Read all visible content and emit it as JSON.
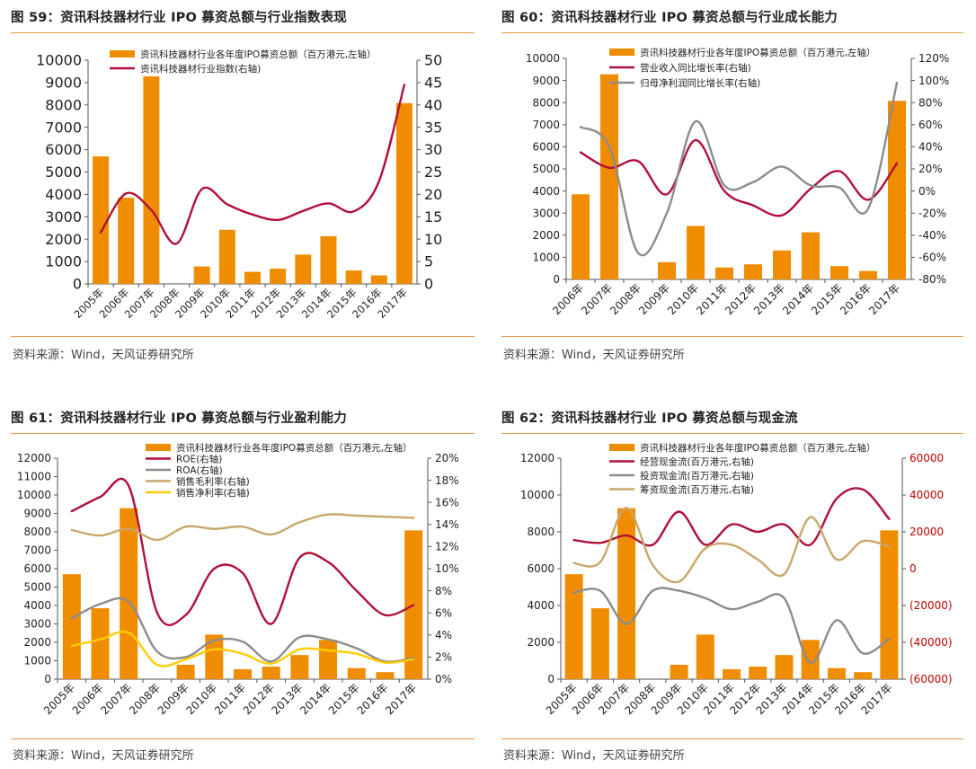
{
  "categories": [
    "2005年",
    "2006年",
    "2007年",
    "2008年",
    "2009年",
    "2010年",
    "2011年",
    "2012年",
    "2013年",
    "2014年",
    "2015年",
    "2016年",
    "2017年"
  ],
  "panels": [
    {
      "title": "图 59：资讯科技器材行业 IPO 募资总额与行业指数表现",
      "source": "资料来源：Wind，天风证券研究所",
      "chart_data": {
        "type": "bar",
        "categories": [
          "2005年",
          "2006年",
          "2007年",
          "2008年",
          "2009年",
          "2010年",
          "2011年",
          "2012年",
          "2013年",
          "2014年",
          "2015年",
          "2016年",
          "2017年"
        ],
        "ylim": [
          0,
          10000
        ],
        "yticks": [
          "0",
          "1000",
          "2000",
          "3000",
          "4000",
          "5000",
          "6000",
          "7000",
          "8000",
          "9000",
          "10000"
        ],
        "ylim_right": [
          0,
          50
        ],
        "yticks_right": [
          "0",
          "5",
          "10",
          "15",
          "20",
          "25",
          "30",
          "35",
          "40",
          "45",
          "50"
        ],
        "series": [
          {
            "name": "资讯科技器材行业各年度IPO募资总额（百万港元,左轴）",
            "type": "bar",
            "axis": "left",
            "values": [
              5700,
              3850,
              9280,
              0,
              780,
              2420,
              540,
              680,
              1310,
              2130,
              600,
              380,
              8080
            ]
          },
          {
            "name": "资讯科技器材行业指数(右轴)",
            "type": "line",
            "axis": "right",
            "values": [
              11.5,
              20.2,
              16.5,
              9,
              21.2,
              17.8,
              15.5,
              14.3,
              16.3,
              18,
              16.2,
              23,
              44.5
            ]
          }
        ]
      }
    },
    {
      "title": "图 60：资讯科技器材行业 IPO 募资总额与行业成长能力",
      "source": "资料来源：Wind，天风证券研究所",
      "chart_data": {
        "type": "bar",
        "categories": [
          "2006年",
          "2007年",
          "2008年",
          "2009年",
          "2010年",
          "2011年",
          "2012年",
          "2013年",
          "2014年",
          "2015年",
          "2016年",
          "2017年"
        ],
        "ylim": [
          0,
          10000
        ],
        "yticks": [
          "0",
          "1000",
          "2000",
          "3000",
          "4000",
          "5000",
          "6000",
          "7000",
          "8000",
          "9000",
          "10000"
        ],
        "ylim_right": [
          -80,
          120
        ],
        "yticks_right": [
          "-80%",
          "-60%",
          "-40%",
          "-20%",
          "0%",
          "20%",
          "40%",
          "60%",
          "80%",
          "100%",
          "120%"
        ],
        "series": [
          {
            "name": "资讯科技器材行业各年度IPO募资总额（百万港元,左轴）",
            "type": "bar",
            "axis": "left",
            "values": [
              3850,
              9280,
              0,
              780,
              2420,
              540,
              680,
              1310,
              2130,
              600,
              380,
              8080
            ]
          },
          {
            "name": "营业收入同比增长率(右轴)",
            "type": "line",
            "axis": "right",
            "values": [
              35,
              21,
              27,
              -3,
              46,
              0,
              -13,
              -22,
              2,
              18,
              -8,
              25
            ]
          },
          {
            "name": "归母净利润同比增长率(右轴)",
            "type": "line",
            "axis": "right",
            "values": [
              58,
              40,
              -56,
              -20,
              63,
              5,
              8,
              22,
              5,
              3,
              -16,
              98
            ]
          }
        ]
      }
    },
    {
      "title": "图 61：资讯科技器材行业 IPO 募资总额与行业盈利能力",
      "source": "资料来源：Wind，天风证券研究所",
      "chart_data": {
        "type": "bar",
        "categories": [
          "2005年",
          "2006年",
          "2007年",
          "2008年",
          "2009年",
          "2010年",
          "2011年",
          "2012年",
          "2013年",
          "2014年",
          "2015年",
          "2016年",
          "2017年"
        ],
        "ylim": [
          0,
          12000
        ],
        "yticks": [
          "0",
          "1000",
          "2000",
          "3000",
          "4000",
          "5000",
          "6000",
          "7000",
          "8000",
          "9000",
          "10000",
          "11000",
          "12000"
        ],
        "ylim_right": [
          0,
          20
        ],
        "yticks_right": [
          "0%",
          "2%",
          "4%",
          "6%",
          "8%",
          "10%",
          "12%",
          "14%",
          "16%",
          "18%",
          "20%"
        ],
        "series": [
          {
            "name": "资讯科技器材行业各年度IPO募资总额（百万港元,左轴）",
            "type": "bar",
            "axis": "left",
            "values": [
              5700,
              3850,
              9280,
              0,
              780,
              2420,
              540,
              680,
              1310,
              2130,
              600,
              380,
              8080
            ]
          },
          {
            "name": "ROE(右轴)",
            "type": "line",
            "axis": "right",
            "values": [
              15.2,
              16.5,
              17.5,
              6,
              5.8,
              10,
              9.6,
              5,
              11,
              10.6,
              8,
              5.8,
              6.7
            ]
          },
          {
            "name": "ROA(右轴)",
            "type": "line",
            "axis": "right",
            "values": [
              5.5,
              6.8,
              7,
              2.5,
              2,
              3.5,
              3.4,
              1.6,
              3.8,
              3.6,
              2.8,
              1.6,
              1.9
            ]
          },
          {
            "name": "销售毛利率(右轴)",
            "type": "line",
            "axis": "right",
            "values": [
              13.5,
              13,
              13.6,
              12.6,
              13.8,
              13.6,
              13.8,
              13.1,
              14.2,
              14.9,
              14.8,
              14.7,
              14.6
            ]
          },
          {
            "name": "销售净利率(右轴)",
            "type": "line",
            "axis": "right",
            "values": [
              3,
              3.6,
              4.2,
              1.3,
              1.8,
              2.7,
              2.3,
              1.4,
              2.7,
              2.6,
              2.3,
              1.5,
              1.8
            ]
          }
        ]
      }
    },
    {
      "title": "图 62：资讯科技器材行业 IPO 募资总额与现金流",
      "source": "资料来源：Wind，天风证券研究所",
      "chart_data": {
        "type": "bar",
        "categories": [
          "2005年",
          "2006年",
          "2007年",
          "2008年",
          "2009年",
          "2010年",
          "2011年",
          "2012年",
          "2013年",
          "2014年",
          "2015年",
          "2016年",
          "2017年"
        ],
        "ylim": [
          0,
          12000
        ],
        "yticks": [
          "0",
          "2000",
          "4000",
          "6000",
          "8000",
          "10000",
          "12000"
        ],
        "ylim_right": [
          -60000,
          60000
        ],
        "yticks_right": [
          "(60000)",
          "(40000)",
          "(20000)",
          "0",
          "20000",
          "40000",
          "60000"
        ],
        "series": [
          {
            "name": "资讯科技器材行业各年度IPO募资总额（百万港元,左轴）",
            "type": "bar",
            "axis": "left",
            "values": [
              5700,
              3850,
              9280,
              0,
              780,
              2420,
              540,
              680,
              1310,
              2130,
              600,
              380,
              8080
            ]
          },
          {
            "name": "经营现金流(百万港元,右轴)",
            "type": "line",
            "axis": "right",
            "values": [
              15500,
              14000,
              18000,
              13000,
              31000,
              13000,
              24000,
              20000,
              24000,
              13000,
              38000,
              43000,
              27000
            ]
          },
          {
            "name": "投资现金流(百万港元,右轴)",
            "type": "line",
            "axis": "right",
            "values": [
              -13000,
              -12000,
              -30000,
              -12000,
              -12000,
              -16000,
              -22000,
              -18000,
              -16000,
              -51000,
              -28000,
              -46000,
              -38000
            ]
          },
          {
            "name": "筹资现金流(百万港元,右轴)",
            "type": "line",
            "axis": "right",
            "values": [
              3000,
              3500,
              33000,
              2000,
              -7000,
              11000,
              13000,
              5000,
              -3000,
              28000,
              5000,
              15000,
              12000
            ]
          }
        ]
      }
    }
  ],
  "colors": {
    "bar": "#f08c00",
    "accent_rule": "#e69a4a",
    "series": [
      "#b0103a",
      "#8c8c8c",
      "#c8a76a",
      "#ffcc00"
    ],
    "red_ticks": "#c00000"
  }
}
